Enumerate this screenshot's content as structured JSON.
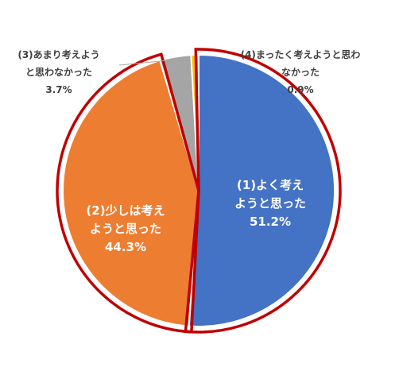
{
  "chart_data": {
    "type": "pie",
    "start": "top",
    "direction": "clockwise",
    "slices": [
      {
        "label_lines": [
          "(1)よく考え",
          "ようと思った"
        ],
        "value": 51.2,
        "value_text": "51.2%",
        "color": "#4472C4",
        "highlighted": true,
        "label_placement": "inside"
      },
      {
        "label_lines": [
          "(2)少しは考え",
          "ようと思った"
        ],
        "value": 44.3,
        "value_text": "44.3%",
        "color": "#ED7D31",
        "highlighted": true,
        "label_placement": "inside"
      },
      {
        "label_lines": [
          "(3)あまり考えよう",
          "と思わなかった"
        ],
        "value": 3.7,
        "value_text": "3.7%",
        "color": "#A5A5A5",
        "highlighted": false,
        "label_placement": "outside"
      },
      {
        "label_lines": [
          "(4)まったく考えようと思わ",
          "なかった"
        ],
        "value": 0.9,
        "value_text": "0.9%",
        "color": "#FFC000",
        "highlighted": false,
        "label_placement": "outside"
      }
    ],
    "highlight_color": "#C00000",
    "legend": "none"
  }
}
